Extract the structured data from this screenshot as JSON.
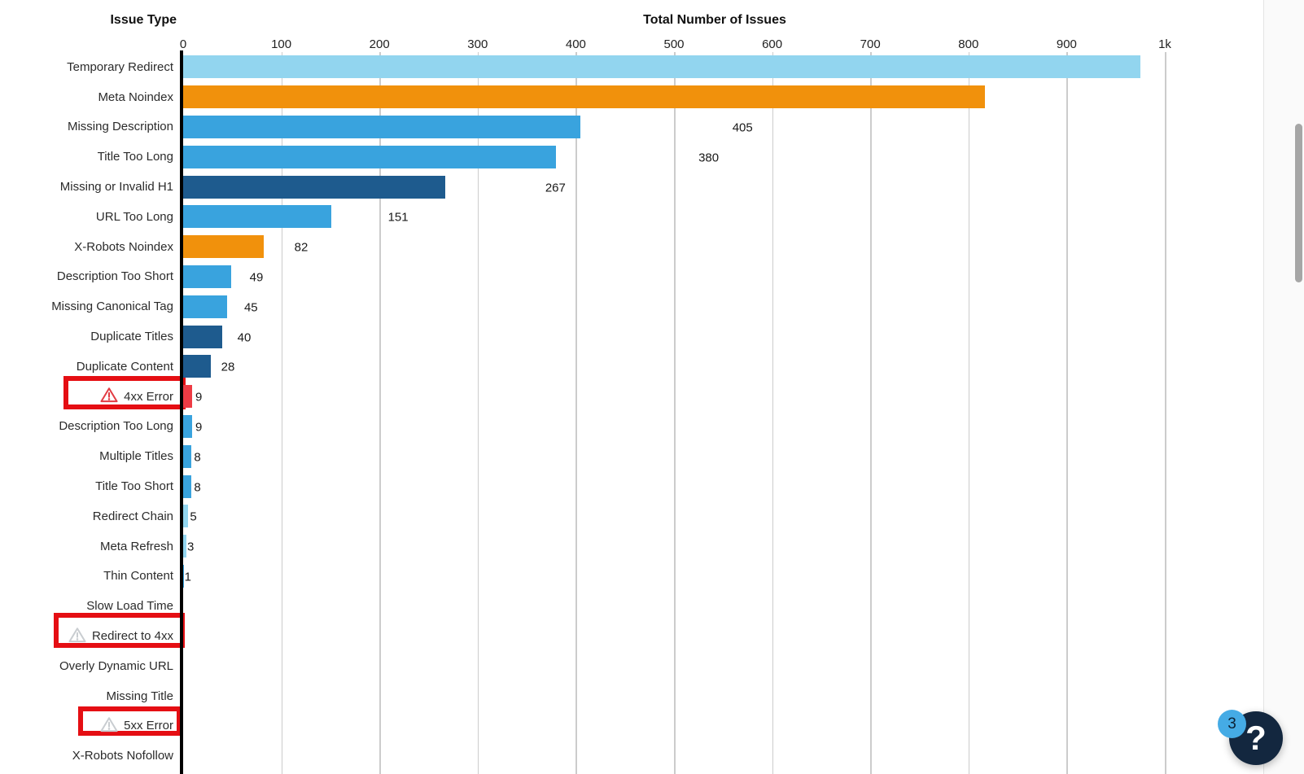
{
  "chart_data": {
    "type": "bar",
    "orientation": "horizontal",
    "title": "Total Number of Issues",
    "category_axis_title": "Issue Type",
    "xlim": [
      0,
      1000
    ],
    "grid": true,
    "x_ticks": [
      {
        "value": 0,
        "label": "0"
      },
      {
        "value": 100,
        "label": "100"
      },
      {
        "value": 200,
        "label": "200"
      },
      {
        "value": 300,
        "label": "300"
      },
      {
        "value": 400,
        "label": "400"
      },
      {
        "value": 500,
        "label": "500"
      },
      {
        "value": 600,
        "label": "600"
      },
      {
        "value": 700,
        "label": "700"
      },
      {
        "value": 800,
        "label": "800"
      },
      {
        "value": 900,
        "label": "900"
      },
      {
        "value": 1000,
        "label": "1k"
      }
    ],
    "rows": [
      {
        "label": "Temporary Redirect",
        "value": 975,
        "color_key": "light_blue",
        "show_value_label": false
      },
      {
        "label": "Meta Noindex",
        "value": 817,
        "color_key": "orange",
        "show_value_label": false
      },
      {
        "label": "Missing Description",
        "value": 405,
        "color_key": "blue",
        "show_value_label": true
      },
      {
        "label": "Title Too Long",
        "value": 380,
        "color_key": "blue",
        "show_value_label": true
      },
      {
        "label": "Missing or Invalid H1",
        "value": 267,
        "color_key": "dark_blue",
        "show_value_label": true
      },
      {
        "label": "URL Too Long",
        "value": 151,
        "color_key": "blue",
        "show_value_label": true
      },
      {
        "label": "X-Robots Noindex",
        "value": 82,
        "color_key": "orange",
        "show_value_label": true
      },
      {
        "label": "Description Too Short",
        "value": 49,
        "color_key": "blue",
        "show_value_label": true
      },
      {
        "label": "Missing Canonical Tag",
        "value": 45,
        "color_key": "blue",
        "show_value_label": true
      },
      {
        "label": "Duplicate Titles",
        "value": 40,
        "color_key": "dark_blue",
        "show_value_label": true
      },
      {
        "label": "Duplicate Content",
        "value": 28,
        "color_key": "dark_blue",
        "show_value_label": true
      },
      {
        "label": "4xx Error",
        "value": 9,
        "color_key": "red",
        "show_value_label": true,
        "highlighted": true,
        "warning_icon": "red"
      },
      {
        "label": "Description Too Long",
        "value": 9,
        "color_key": "blue",
        "show_value_label": true
      },
      {
        "label": "Multiple Titles",
        "value": 8,
        "color_key": "blue",
        "show_value_label": true
      },
      {
        "label": "Title Too Short",
        "value": 8,
        "color_key": "blue",
        "show_value_label": true
      },
      {
        "label": "Redirect Chain",
        "value": 5,
        "color_key": "light_blue",
        "show_value_label": true
      },
      {
        "label": "Meta Refresh",
        "value": 3,
        "color_key": "light_blue",
        "show_value_label": true
      },
      {
        "label": "Thin Content",
        "value": 1,
        "color_key": "blue",
        "show_value_label": true
      },
      {
        "label": "Slow Load Time",
        "value": 0,
        "color_key": "none",
        "show_value_label": false
      },
      {
        "label": "Redirect to 4xx",
        "value": 0,
        "color_key": "none",
        "show_value_label": false,
        "highlighted": true,
        "warning_icon": "gray"
      },
      {
        "label": "Overly Dynamic URL",
        "value": 0,
        "color_key": "none",
        "show_value_label": false
      },
      {
        "label": "Missing Title",
        "value": 0,
        "color_key": "none",
        "show_value_label": false
      },
      {
        "label": "5xx Error",
        "value": 0,
        "color_key": "none",
        "show_value_label": false,
        "highlighted": true,
        "warning_icon": "gray"
      },
      {
        "label": "X-Robots Nofollow",
        "value": 0,
        "color_key": "none",
        "show_value_label": false
      }
    ]
  },
  "colors": {
    "light_blue": "#92D5EF",
    "orange": "#F1910C",
    "blue": "#39A3DE",
    "dark_blue": "#1E5B8E",
    "red": "#EE3B44",
    "highlight_border": "#E50E13",
    "warning_icon_red": "#E23C44",
    "warning_icon_gray": "#C9CDD1",
    "gridline": "#CCCCCC",
    "axis": "#000000",
    "navy": "#13273F",
    "badge_blue": "#45ABE5",
    "scrollbar_thumb": "#A6A6A6"
  },
  "help_widget": {
    "button_glyph": "?",
    "badge_count": "3"
  }
}
